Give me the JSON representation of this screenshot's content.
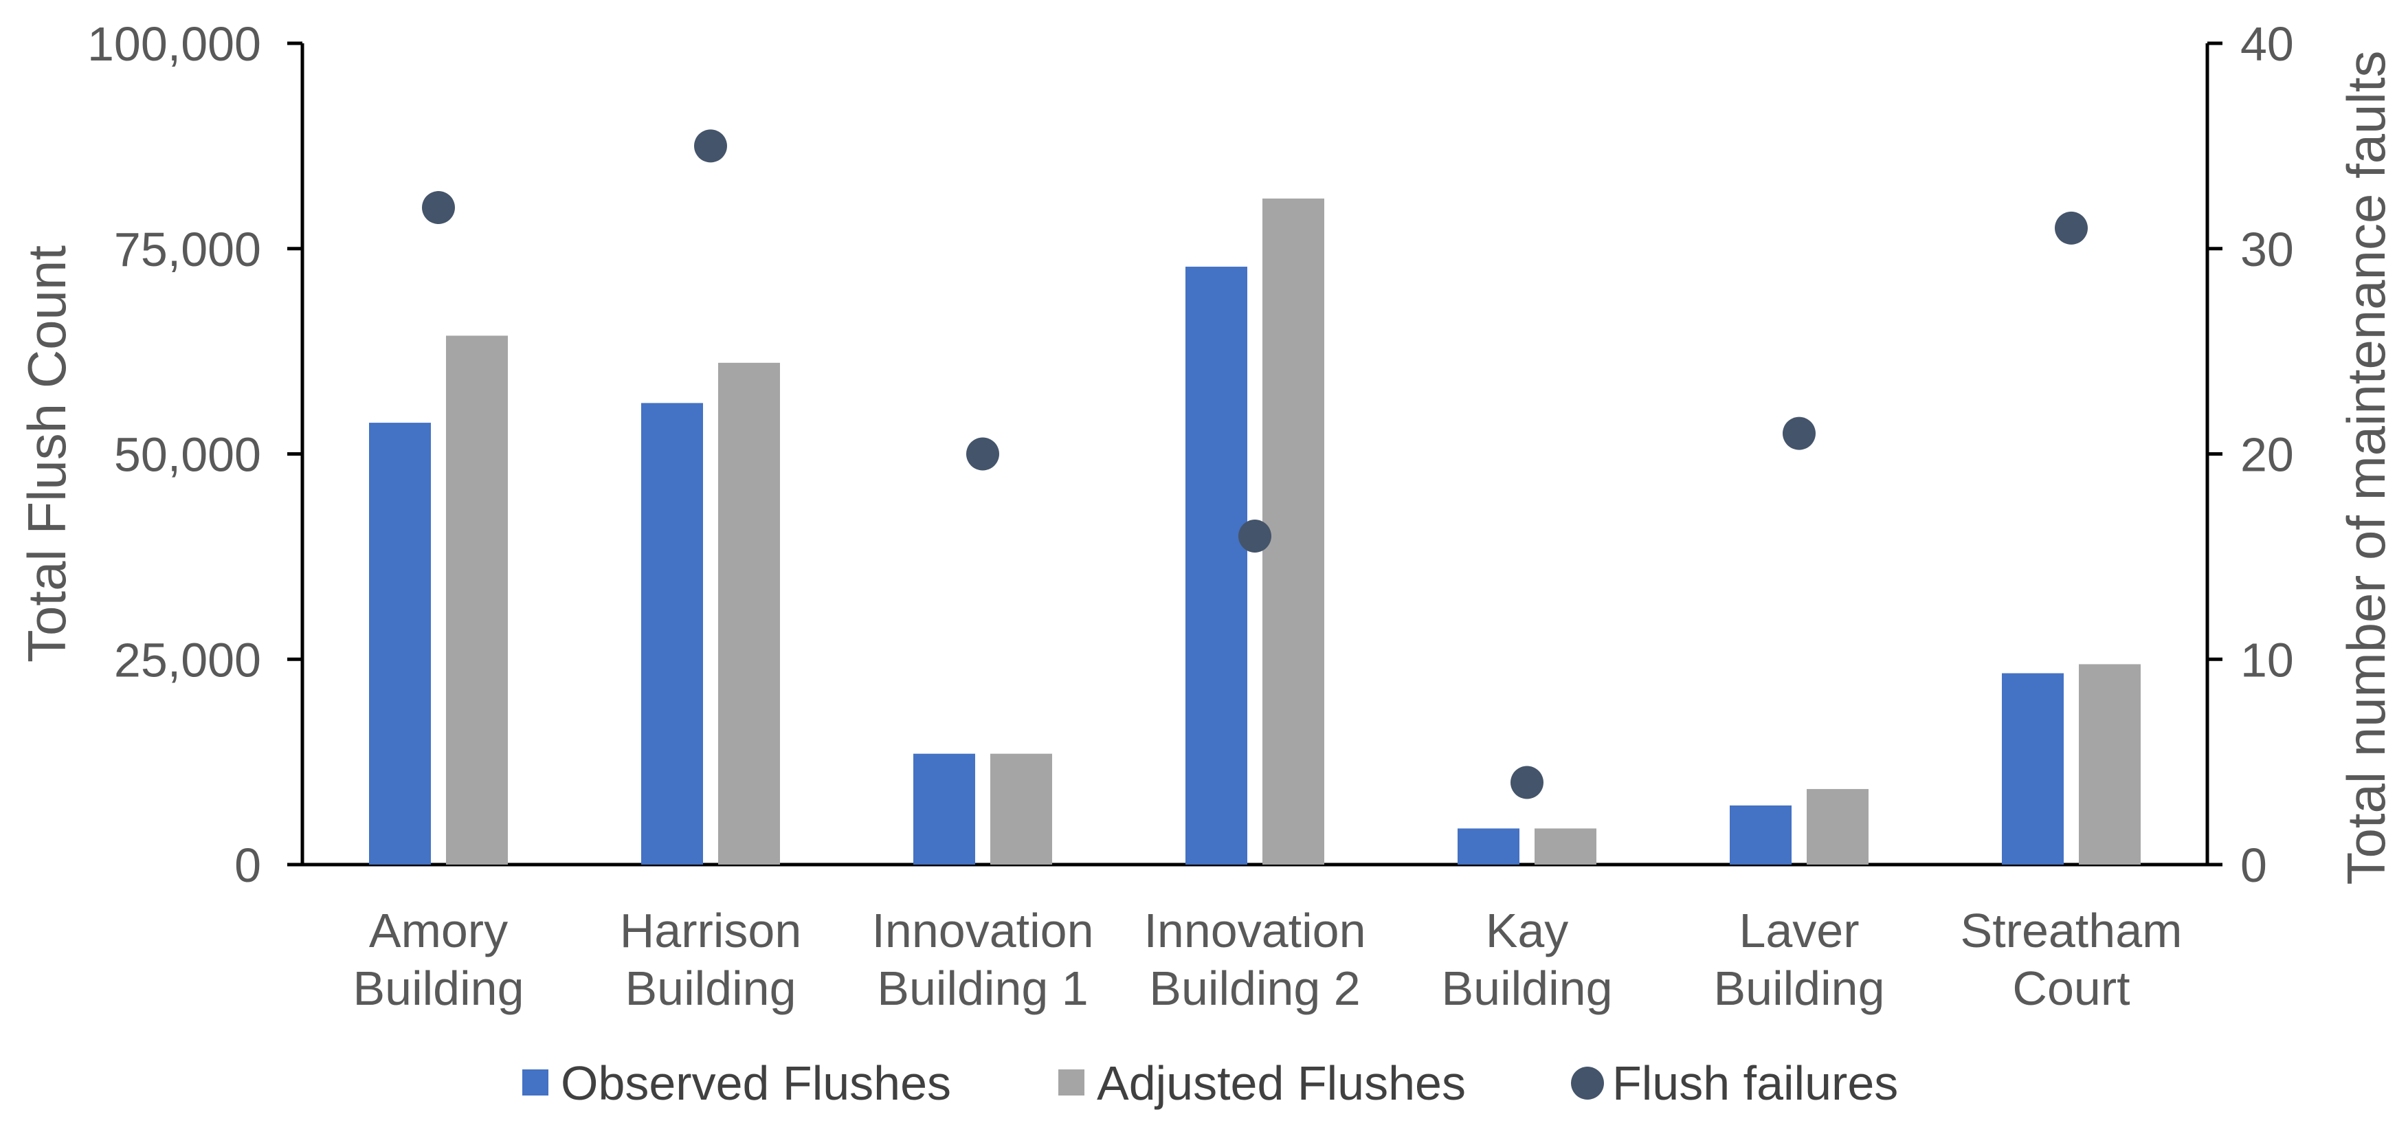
{
  "chart_data": {
    "type": "bar",
    "categories": [
      [
        "Amory",
        "Building"
      ],
      [
        "Harrison",
        "Building"
      ],
      [
        "Innovation",
        "Building 1"
      ],
      [
        "Innovation",
        "Building 2"
      ],
      [
        "Kay",
        "Building"
      ],
      [
        "Laver",
        "Building"
      ],
      [
        "Streatham",
        "Court"
      ]
    ],
    "series": [
      {
        "name": "Observed Flushes",
        "kind": "bar",
        "axis": "left",
        "color": "#4472C4",
        "values": [
          53800,
          56200,
          13500,
          72800,
          4400,
          7200,
          23300
        ]
      },
      {
        "name": "Adjusted Flushes",
        "kind": "bar",
        "axis": "left",
        "color": "#A5A5A5",
        "values": [
          64400,
          61100,
          13500,
          81100,
          4400,
          9200,
          24400
        ]
      },
      {
        "name": "Flush failures",
        "kind": "scatter",
        "axis": "right",
        "color": "#44546A",
        "values": [
          32,
          35,
          20,
          16,
          4,
          21,
          31
        ]
      }
    ],
    "title": "",
    "xlabel": "",
    "ylabel": "Total Flush Count",
    "y2label": "Total number of maintenance faults",
    "ylim": [
      0,
      100000
    ],
    "yticks": [
      0,
      25000,
      50000,
      75000,
      100000
    ],
    "ytick_labels": [
      "0",
      "25,000",
      "50,000",
      "75,000",
      "100,000"
    ],
    "y2lim": [
      0,
      40
    ],
    "y2ticks": [
      0,
      10,
      20,
      30,
      40
    ],
    "y2tick_labels": [
      "0",
      "10",
      "20",
      "30",
      "40"
    ],
    "grid": false,
    "legend_position": "bottom"
  }
}
